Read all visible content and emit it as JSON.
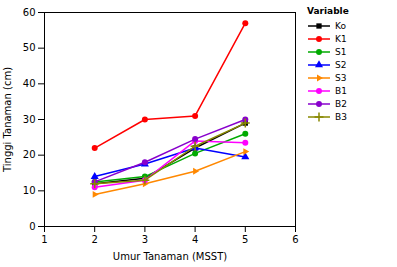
{
  "chart_data": {
    "type": "line",
    "x": [
      2,
      3,
      4,
      5
    ],
    "series": [
      {
        "name": "Ko",
        "color": "#000000",
        "marker": "square",
        "values": [
          12.0,
          13.5,
          22.0,
          29.0
        ]
      },
      {
        "name": "K1",
        "color": "#ff0000",
        "marker": "circle",
        "values": [
          22.0,
          30.0,
          31.0,
          57.0
        ]
      },
      {
        "name": "S1",
        "color": "#00aa00",
        "marker": "circle",
        "values": [
          12.5,
          14.0,
          20.5,
          26.0
        ]
      },
      {
        "name": "S2",
        "color": "#0000ff",
        "marker": "triangle",
        "values": [
          14.0,
          17.5,
          22.0,
          19.5
        ]
      },
      {
        "name": "S3",
        "color": "#ff8800",
        "marker": "triangle-right",
        "values": [
          9.0,
          12.0,
          15.5,
          21.0
        ]
      },
      {
        "name": "B1",
        "color": "#ff00ff",
        "marker": "circle",
        "values": [
          11.0,
          13.0,
          24.0,
          23.5
        ]
      },
      {
        "name": "B2",
        "color": "#8800cc",
        "marker": "circle",
        "values": [
          12.5,
          18.0,
          24.5,
          30.0
        ]
      },
      {
        "name": "B3",
        "color": "#888800",
        "marker": "plus",
        "values": [
          12.0,
          13.0,
          22.5,
          29.0
        ]
      }
    ],
    "xlabel": "Umur Tanaman (MSST)",
    "ylabel": "Tinggi Tanaman (cm)",
    "xlim": [
      1,
      6
    ],
    "ylim": [
      0,
      60
    ],
    "xticks": [
      1,
      2,
      3,
      4,
      5,
      6
    ],
    "yticks": [
      0,
      10,
      20,
      30,
      40,
      50,
      60
    ],
    "legend_title": "Variable",
    "legend": "right",
    "grid": false
  }
}
